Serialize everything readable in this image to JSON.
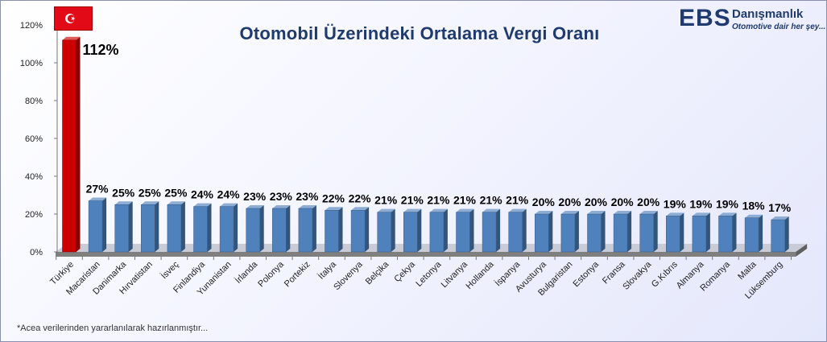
{
  "chart_data": {
    "type": "bar",
    "title": "Otomobil Üzerindeki Ortalama Vergi Oranı",
    "categories": [
      "Türkiye",
      "Macaristan",
      "Danimarka",
      "Hırvatistan",
      "İsveç",
      "Finlandiya",
      "Yunanistan",
      "İrlanda",
      "Polonya",
      "Portekiz",
      "İtalya",
      "Slovenya",
      "Belçika",
      "Çekya",
      "Letonya",
      "Litvanya",
      "Hollanda",
      "İspanya",
      "Avusturya",
      "Bulgaristan",
      "Estonya",
      "Fransa",
      "Slovakya",
      "G.Kıbrıs",
      "Almanya",
      "Romanya",
      "Malta",
      "Lüksemburg"
    ],
    "values": [
      112,
      27,
      25,
      25,
      25,
      24,
      24,
      23,
      23,
      23,
      22,
      22,
      21,
      21,
      21,
      21,
      21,
      21,
      20,
      20,
      20,
      20,
      20,
      19,
      19,
      19,
      18,
      17
    ],
    "data_labels": [
      "112%",
      "27%",
      "25%",
      "25%",
      "25%",
      "24%",
      "24%",
      "23%",
      "23%",
      "23%",
      "22%",
      "22%",
      "21%",
      "21%",
      "21%",
      "21%",
      "21%",
      "21%",
      "20%",
      "20%",
      "20%",
      "20%",
      "20%",
      "19%",
      "19%",
      "19%",
      "18%",
      "17%"
    ],
    "ylim": [
      0,
      120
    ],
    "yticks": [
      0,
      20,
      40,
      60,
      80,
      100,
      120
    ],
    "ytick_labels": [
      "0%",
      "20%",
      "40%",
      "60%",
      "80%",
      "100%",
      "120%"
    ],
    "xlabel": "",
    "ylabel": "",
    "grid": false,
    "colors": {
      "highlight": "#cc0000",
      "bar": "#4f81bd",
      "floor": "#7f7f7f"
    },
    "highlight_index": 0
  },
  "flag": {
    "icon": "turkish-flag-icon",
    "color": "#e30a17"
  },
  "logo": {
    "ebs": "EBS",
    "name": "Danışmanlık",
    "slogan": "Otomotive dair her şey..."
  },
  "footnote": "*Acea verilerinden yararlanılarak hazırlanmıştır..."
}
